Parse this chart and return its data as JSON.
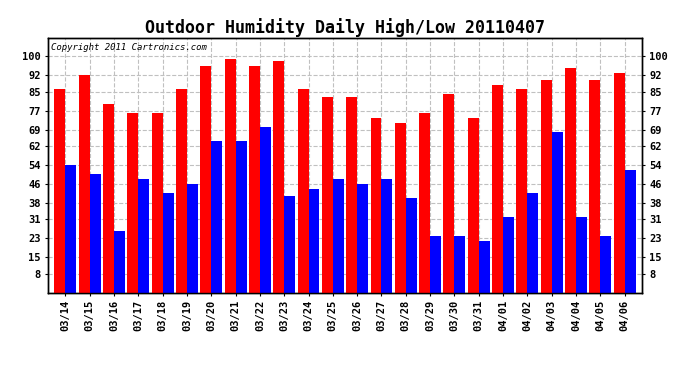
{
  "title": "Outdoor Humidity Daily High/Low 20110407",
  "copyright_text": "Copyright 2011 Cartronics.com",
  "dates": [
    "03/14",
    "03/15",
    "03/16",
    "03/17",
    "03/18",
    "03/19",
    "03/20",
    "03/21",
    "03/22",
    "03/23",
    "03/24",
    "03/25",
    "03/26",
    "03/27",
    "03/28",
    "03/29",
    "03/30",
    "03/31",
    "04/01",
    "04/02",
    "04/03",
    "04/04",
    "04/05",
    "04/06"
  ],
  "highs": [
    86,
    92,
    80,
    76,
    76,
    86,
    96,
    99,
    96,
    98,
    86,
    83,
    83,
    74,
    72,
    76,
    84,
    74,
    88,
    86,
    90,
    95,
    90,
    93
  ],
  "lows": [
    54,
    50,
    26,
    48,
    42,
    46,
    64,
    64,
    70,
    41,
    44,
    48,
    46,
    48,
    40,
    24,
    24,
    22,
    32,
    42,
    68,
    32,
    24,
    52
  ],
  "high_color": "#ff0000",
  "low_color": "#0000ff",
  "background_color": "#ffffff",
  "plot_bg_color": "#ffffff",
  "grid_color": "#c0c0c0",
  "bar_width": 0.45,
  "ylim": [
    0,
    108
  ],
  "yticks": [
    8,
    15,
    23,
    31,
    38,
    46,
    54,
    62,
    69,
    77,
    85,
    92,
    100
  ],
  "title_fontsize": 12,
  "tick_fontsize": 7.5,
  "copyright_fontsize": 6.5,
  "border_color": "#000000"
}
